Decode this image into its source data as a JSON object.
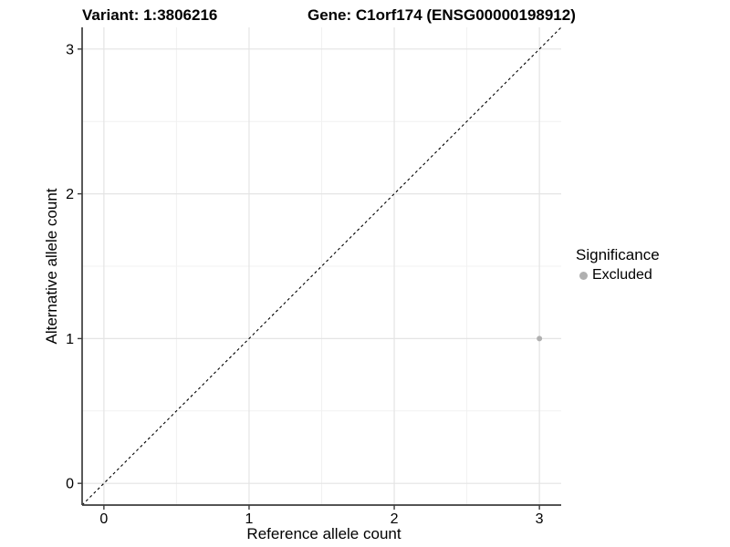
{
  "header": {
    "variant_title": "Variant: 1:3806216",
    "gene_title": "Gene: C1orf174 (ENSG00000198912)"
  },
  "chart_data": {
    "type": "scatter",
    "title_left": "Variant: 1:3806216",
    "title_right": "Gene: C1orf174 (ENSG00000198912)",
    "xlabel": "Reference allele count",
    "ylabel": "Alternative allele count",
    "xlim": [
      -0.15,
      3.15
    ],
    "ylim": [
      -0.15,
      3.15
    ],
    "xticks": [
      0,
      1,
      2,
      3
    ],
    "yticks": [
      0,
      1,
      2,
      3
    ],
    "xminor": [
      0.5,
      1.5,
      2.5
    ],
    "yminor": [
      0.5,
      1.5,
      2.5
    ],
    "grid": "major+minor",
    "identity_line": {
      "style": "dashed",
      "x1": -0.15,
      "y1": -0.15,
      "x2": 3.15,
      "y2": 3.15
    },
    "series": [
      {
        "name": "Excluded",
        "color": "#b0b0b0",
        "points": [
          {
            "x": 3,
            "y": 1
          }
        ]
      }
    ],
    "legend": {
      "title": "Significance",
      "position": "right",
      "entries": [
        {
          "label": "Excluded",
          "color": "#b0b0b0"
        }
      ]
    }
  },
  "colors": {
    "background": "#ffffff",
    "grid_major": "#e4e4e4",
    "grid_minor": "#f1f1f1",
    "axis_line": "#3c3c3c",
    "tick_mark": "#3c3c3c",
    "text": "#000000",
    "identity_line": "#000000",
    "point": "#b0b0b0"
  }
}
